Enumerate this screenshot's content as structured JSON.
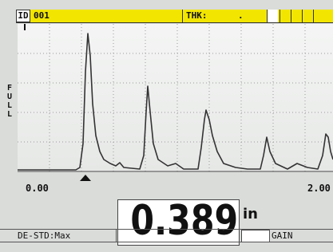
{
  "header": {
    "id_label": "ID",
    "id_value": "001",
    "thk_label": "THK:",
    "thk_value": "."
  },
  "scope": {
    "range_label": "FULL",
    "x_start": "0.00",
    "x_end": "2.00"
  },
  "measurement": {
    "reading": "0.389",
    "unit": "in",
    "mode": "DE-STD:Max",
    "gain_label": "GAIN"
  }
}
